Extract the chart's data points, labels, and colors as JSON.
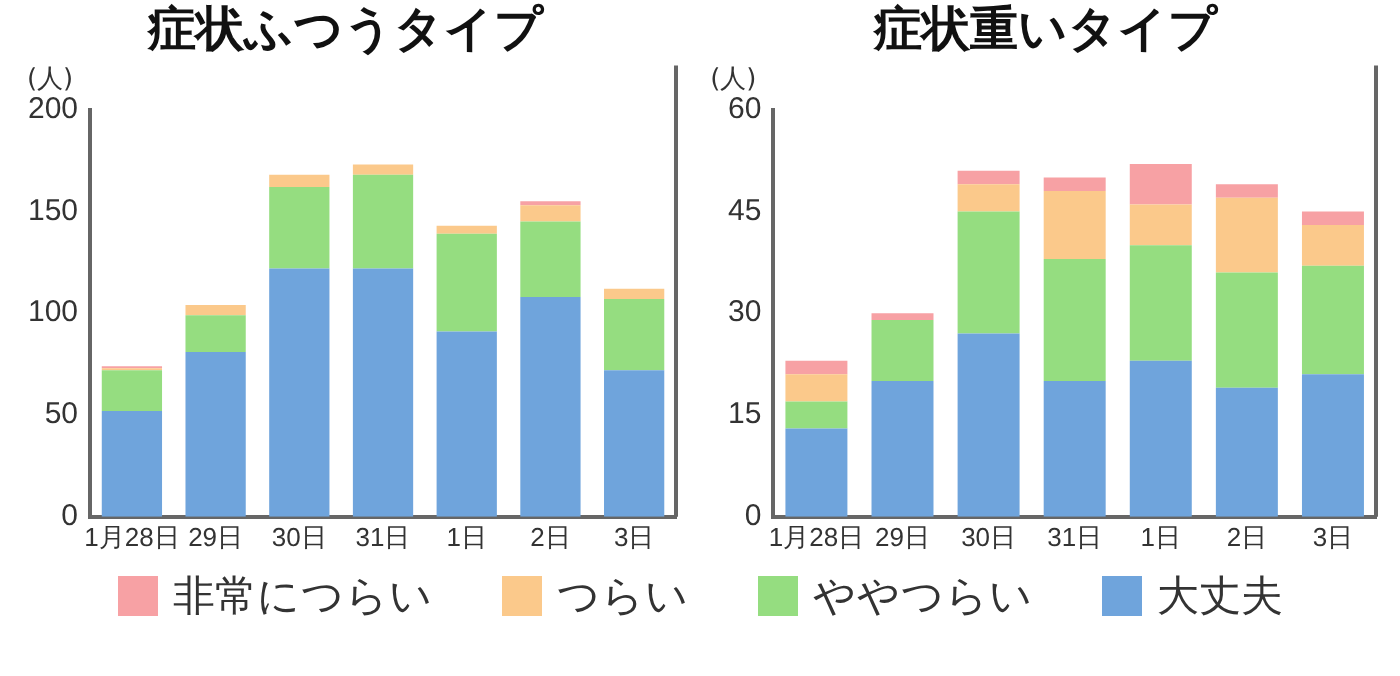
{
  "chart_data": [
    {
      "type": "bar",
      "stacked": true,
      "title": "症状ふつうタイプ",
      "ylabel": "(人)",
      "categories": [
        "1月28日",
        "29日",
        "30日",
        "31日",
        "1日",
        "2日",
        "3日"
      ],
      "series": [
        {
          "name": "大丈夫",
          "color": "#6fa4dc",
          "values": [
            52,
            81,
            122,
            122,
            91,
            108,
            72
          ]
        },
        {
          "name": "ややつらい",
          "color": "#95dd80",
          "values": [
            20,
            18,
            40,
            46,
            48,
            37,
            35
          ]
        },
        {
          "name": "つらい",
          "color": "#fbc98b",
          "values": [
            1,
            5,
            6,
            5,
            4,
            8,
            5
          ]
        },
        {
          "name": "非常につらい",
          "color": "#f7a1a4",
          "values": [
            1,
            0,
            0,
            0,
            0,
            2,
            0
          ]
        }
      ],
      "ylim": [
        0,
        200
      ],
      "yticks": [
        0,
        50,
        100,
        150,
        200
      ],
      "grid": false,
      "legend": "bottom"
    },
    {
      "type": "bar",
      "stacked": true,
      "title": "症状重いタイプ",
      "ylabel": "(人)",
      "categories": [
        "1月28日",
        "29日",
        "30日",
        "31日",
        "1日",
        "2日",
        "3日"
      ],
      "series": [
        {
          "color": "#6fa4dc",
          "values": [
            13,
            20,
            27,
            20,
            23,
            19,
            21
          ]
        },
        {
          "color": "#95dd80",
          "values": [
            4,
            9,
            18,
            18,
            17,
            17,
            16
          ]
        },
        {
          "color": "#fbc98b",
          "values": [
            4,
            0,
            4,
            10,
            6,
            11,
            6
          ]
        },
        {
          "color": "#f7a1a4",
          "values": [
            2,
            1,
            2,
            2,
            6,
            2,
            2
          ]
        }
      ],
      "ylim": [
        0,
        60
      ],
      "yticks": [
        0,
        15,
        30,
        45,
        60
      ],
      "grid": false
    }
  ]
}
